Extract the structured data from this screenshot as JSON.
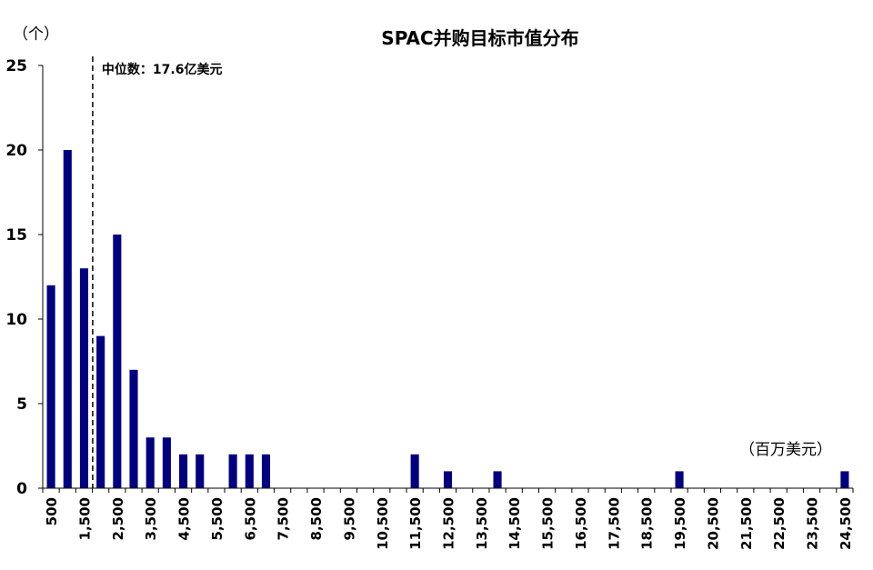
{
  "chart_data": {
    "type": "bar",
    "title": "SPAC并购目标市值分布",
    "y_unit": "（个）",
    "x_unit": "（百万美元）",
    "ylim": [
      0,
      25
    ],
    "yticks": [
      0,
      5,
      10,
      15,
      20,
      25
    ],
    "bin_width": 500,
    "x_range": [
      250,
      24750
    ],
    "xtick_labels": [
      "500",
      "1,500",
      "2,500",
      "3,500",
      "4,500",
      "5,500",
      "6,500",
      "7,500",
      "8,500",
      "9,500",
      "10,500",
      "11,500",
      "12,500",
      "13,500",
      "14,500",
      "15,500",
      "16,500",
      "17,500",
      "18,500",
      "19,500",
      "20,500",
      "21,500",
      "22,500",
      "23,500",
      "24,500"
    ],
    "bars": [
      {
        "x": 500,
        "value": 12
      },
      {
        "x": 1000,
        "value": 20
      },
      {
        "x": 1500,
        "value": 13
      },
      {
        "x": 2000,
        "value": 9
      },
      {
        "x": 2500,
        "value": 15
      },
      {
        "x": 3000,
        "value": 7
      },
      {
        "x": 3500,
        "value": 3
      },
      {
        "x": 4000,
        "value": 3
      },
      {
        "x": 4500,
        "value": 2
      },
      {
        "x": 5000,
        "value": 2
      },
      {
        "x": 6000,
        "value": 2
      },
      {
        "x": 6500,
        "value": 2
      },
      {
        "x": 7000,
        "value": 2
      },
      {
        "x": 11500,
        "value": 2
      },
      {
        "x": 12500,
        "value": 1
      },
      {
        "x": 14000,
        "value": 1
      },
      {
        "x": 19500,
        "value": 1
      },
      {
        "x": 24500,
        "value": 1
      }
    ],
    "median": {
      "x": 1760,
      "label": "中位数：17.6亿美元"
    },
    "bar_color": "#000080",
    "grid": false,
    "legend": "none"
  }
}
